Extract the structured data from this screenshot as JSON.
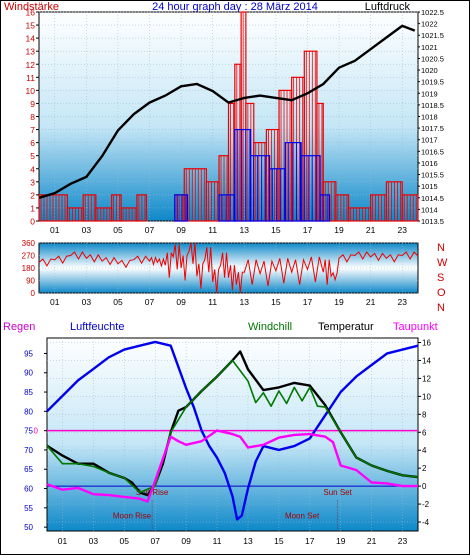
{
  "header": {
    "left": "Windstärke",
    "center": "24 hour graph day : 28 März 2014",
    "right": "Luftdruck"
  },
  "panel2": {
    "compass": [
      "N",
      "W",
      "S",
      "O",
      "N"
    ]
  },
  "panel3": {
    "legend": [
      {
        "label": "Regen",
        "color": "#cc00cc"
      },
      {
        "label": "Luftfeuchte",
        "color": "#0000cc"
      },
      {
        "label": "Windchill",
        "color": "#007700"
      },
      {
        "label": "Temperatur",
        "color": "#000000"
      },
      {
        "label": "Taupunkt",
        "color": "#ff00ff"
      }
    ],
    "annotations": {
      "sun_rise": "Sun Rise",
      "sun_set": "Sun Set",
      "moon_rise": "Moon Rise",
      "moon_set": "Moon Set",
      "regen_zero": "0"
    }
  },
  "x_ticks": [
    "01",
    "03",
    "05",
    "07",
    "09",
    "11",
    "13",
    "15",
    "17",
    "19",
    "21",
    "23"
  ],
  "x_tick_hours": [
    1,
    3,
    5,
    7,
    9,
    11,
    13,
    15,
    17,
    19,
    21,
    23
  ],
  "chart_data": [
    {
      "type": "bar",
      "title": "24 hour graph day : 28 März 2014",
      "left_axis": {
        "label": "Windstärke",
        "ylim": [
          0,
          16
        ],
        "ticks": [
          "0",
          "1",
          "2",
          "3",
          "4",
          "5",
          "6",
          "7",
          "8",
          "9",
          "10",
          "11",
          "12",
          "13",
          "14",
          "15",
          "16"
        ]
      },
      "right_axis": {
        "label": "Luftdruck",
        "ylim": [
          1013.5,
          1022.5
        ],
        "ticks": [
          "1013.5",
          "1014",
          "1014.5",
          "1015",
          "1015.5",
          "1016",
          "1016.5",
          "1017",
          "1017.5",
          "1018",
          "1018.5",
          "1019",
          "1019.5",
          "1020",
          "1020.5",
          "1021",
          "1021.5",
          "1022",
          "1022.5"
        ]
      },
      "xlim": [
        0,
        24
      ],
      "pressure": {
        "x": [
          0,
          1,
          2,
          3,
          4,
          5,
          6,
          7,
          8,
          9,
          10,
          11,
          12,
          13,
          14,
          15,
          16,
          17,
          18,
          19,
          20,
          21,
          22,
          23,
          23.8
        ],
        "y": [
          1014.5,
          1014.7,
          1015.1,
          1015.4,
          1016.3,
          1017.4,
          1018.1,
          1018.6,
          1018.9,
          1019.3,
          1019.4,
          1019.1,
          1018.6,
          1018.8,
          1018.9,
          1018.8,
          1018.7,
          1019.0,
          1019.4,
          1020.1,
          1020.4,
          1020.9,
          1021.4,
          1021.9,
          1021.7
        ]
      },
      "gust_bars": [
        {
          "x0": 0,
          "x1": 1.8,
          "y": 2
        },
        {
          "x0": 1.8,
          "x1": 2.8,
          "y": 1
        },
        {
          "x0": 2.8,
          "x1": 3.6,
          "y": 2
        },
        {
          "x0": 3.6,
          "x1": 4.6,
          "y": 1
        },
        {
          "x0": 4.6,
          "x1": 5.2,
          "y": 2
        },
        {
          "x0": 5.2,
          "x1": 6.2,
          "y": 1
        },
        {
          "x0": 6.2,
          "x1": 6.8,
          "y": 2
        },
        {
          "x0": 8.6,
          "x1": 9.2,
          "y": 2
        },
        {
          "x0": 9.2,
          "x1": 10.6,
          "y": 4
        },
        {
          "x0": 10.6,
          "x1": 11.4,
          "y": 3
        },
        {
          "x0": 11.4,
          "x1": 12.0,
          "y": 5
        },
        {
          "x0": 12.0,
          "x1": 12.4,
          "y": 9
        },
        {
          "x0": 12.4,
          "x1": 12.8,
          "y": 12
        },
        {
          "x0": 12.8,
          "x1": 13.1,
          "y": 16
        },
        {
          "x0": 13.1,
          "x1": 13.6,
          "y": 9
        },
        {
          "x0": 13.6,
          "x1": 14.4,
          "y": 6
        },
        {
          "x0": 14.4,
          "x1": 15.2,
          "y": 7
        },
        {
          "x0": 15.2,
          "x1": 16.0,
          "y": 10
        },
        {
          "x0": 16.0,
          "x1": 16.8,
          "y": 11
        },
        {
          "x0": 16.8,
          "x1": 17.6,
          "y": 13
        },
        {
          "x0": 17.6,
          "x1": 18.0,
          "y": 9
        },
        {
          "x0": 18.0,
          "x1": 18.8,
          "y": 3
        },
        {
          "x0": 18.8,
          "x1": 19.6,
          "y": 2
        },
        {
          "x0": 19.6,
          "x1": 21.0,
          "y": 1
        },
        {
          "x0": 21.0,
          "x1": 22.0,
          "y": 2
        },
        {
          "x0": 22.0,
          "x1": 23.0,
          "y": 3
        },
        {
          "x0": 23.0,
          "x1": 24.0,
          "y": 2
        }
      ],
      "wind_bars": [
        {
          "x0": 8.6,
          "x1": 9.4,
          "y": 2
        },
        {
          "x0": 11.4,
          "x1": 12.4,
          "y": 2
        },
        {
          "x0": 12.4,
          "x1": 13.4,
          "y": 7
        },
        {
          "x0": 13.4,
          "x1": 14.6,
          "y": 5
        },
        {
          "x0": 14.6,
          "x1": 15.6,
          "y": 4
        },
        {
          "x0": 15.6,
          "x1": 16.6,
          "y": 6
        },
        {
          "x0": 16.6,
          "x1": 17.8,
          "y": 5
        },
        {
          "x0": 17.8,
          "x1": 18.4,
          "y": 2
        }
      ]
    },
    {
      "type": "scatter",
      "title": "",
      "ylim": [
        0,
        360
      ],
      "y_ticks": [
        "0",
        "90",
        "180",
        "270",
        "360"
      ],
      "xlim": [
        0,
        24
      ],
      "direction": {
        "x": [
          0,
          1,
          2,
          3,
          4,
          5,
          6,
          7,
          7.5,
          8,
          8.5,
          9,
          9.5,
          10,
          10.5,
          11,
          11.5,
          12,
          12.5,
          13,
          14,
          15,
          16,
          17,
          18,
          18.5,
          19,
          20,
          21,
          22,
          23,
          24
        ],
        "y": [
          220,
          240,
          270,
          250,
          230,
          210,
          240,
          230,
          220,
          200,
          260,
          180,
          300,
          120,
          240,
          80,
          200,
          110,
          60,
          150,
          140,
          160,
          150,
          170,
          150,
          120,
          250,
          270,
          260,
          250,
          270,
          265
        ]
      }
    },
    {
      "type": "line",
      "title": "",
      "xlim": [
        0,
        24
      ],
      "left_axis": {
        "label": "Luftfeuchte",
        "ylim": [
          49,
          99
        ],
        "ticks": [
          "50",
          "55",
          "60",
          "65",
          "70",
          "75",
          "80",
          "85",
          "90",
          "95"
        ]
      },
      "right_axis": {
        "label": "Temperatur",
        "ylim": [
          -5,
          16.5
        ],
        "ticks": [
          "-4",
          "-2",
          "0",
          "2",
          "4",
          "6",
          "8",
          "10",
          "12",
          "14",
          "16"
        ]
      },
      "regen_line_value": 0,
      "series": [
        {
          "name": "Luftfeuchte",
          "axis": "left",
          "color": "#0000ee",
          "x": [
            0,
            1,
            2,
            3,
            4,
            5,
            6,
            7,
            8,
            9,
            9.5,
            10,
            10.5,
            11,
            11.5,
            12,
            12.3,
            12.6,
            13,
            13.5,
            14,
            15,
            16,
            17,
            18,
            19,
            20,
            21,
            22,
            23,
            24
          ],
          "y": [
            80,
            84,
            88,
            91,
            94,
            96,
            97,
            98,
            97,
            86,
            81,
            75,
            71,
            68,
            64,
            58,
            52,
            53,
            60,
            67,
            71,
            70,
            71,
            73,
            79,
            85,
            89,
            92,
            95,
            96,
            97
          ]
        },
        {
          "name": "Temperatur",
          "axis": "right",
          "color": "#000000",
          "x": [
            0,
            1,
            2,
            3,
            4,
            5,
            5.5,
            6,
            6.5,
            7,
            7.5,
            8,
            8.5,
            9,
            10,
            11,
            12,
            12.5,
            13,
            14,
            15,
            16,
            17,
            18,
            19,
            20,
            21,
            22,
            23,
            24
          ],
          "y": [
            4.5,
            3.4,
            2.5,
            2.5,
            1.5,
            0.9,
            0.4,
            -0.7,
            -1.0,
            0.2,
            2.5,
            6.0,
            8.4,
            8.8,
            10.6,
            12.2,
            14.0,
            15.0,
            13.0,
            10.7,
            11.0,
            11.5,
            11.2,
            9.0,
            6.0,
            3.2,
            2.3,
            1.7,
            1.2,
            1.0
          ]
        },
        {
          "name": "Windchill",
          "axis": "right",
          "color": "#007700",
          "x": [
            0,
            1,
            2,
            3,
            4,
            5,
            6,
            7,
            8,
            9,
            10,
            11,
            12,
            13,
            13.5,
            14,
            14.5,
            15,
            15.5,
            16,
            16.5,
            17,
            17.5,
            18,
            19,
            20,
            21,
            22,
            23,
            24
          ],
          "y": [
            4.5,
            2.5,
            2.5,
            2.2,
            1.5,
            0.9,
            -0.7,
            0.0,
            6.0,
            8.8,
            10.6,
            12.2,
            14.0,
            11.7,
            9.3,
            10.4,
            8.9,
            10.6,
            9.2,
            11.0,
            9.5,
            11.0,
            8.9,
            8.8,
            6.0,
            3.2,
            2.3,
            1.7,
            1.2,
            1.0
          ]
        },
        {
          "name": "Taupunkt",
          "axis": "right",
          "color": "#ff00ff",
          "x": [
            0,
            1,
            2,
            3,
            4,
            5,
            6,
            6.5,
            7,
            8,
            8.5,
            9,
            10,
            11,
            11.5,
            12,
            12.5,
            13,
            14,
            15,
            16,
            17,
            18,
            18.5,
            19,
            20,
            21,
            22,
            23,
            24
          ],
          "y": [
            0.2,
            -0.4,
            -0.2,
            -0.9,
            -1.0,
            -1.2,
            -1.4,
            -1.7,
            0.6,
            5.5,
            5.0,
            4.6,
            5.0,
            6.2,
            6.0,
            5.8,
            5.5,
            4.3,
            4.6,
            5.4,
            5.7,
            5.8,
            5.5,
            4.9,
            2.3,
            1.8,
            0.4,
            0.3,
            0.0,
            0.0
          ]
        }
      ]
    }
  ]
}
